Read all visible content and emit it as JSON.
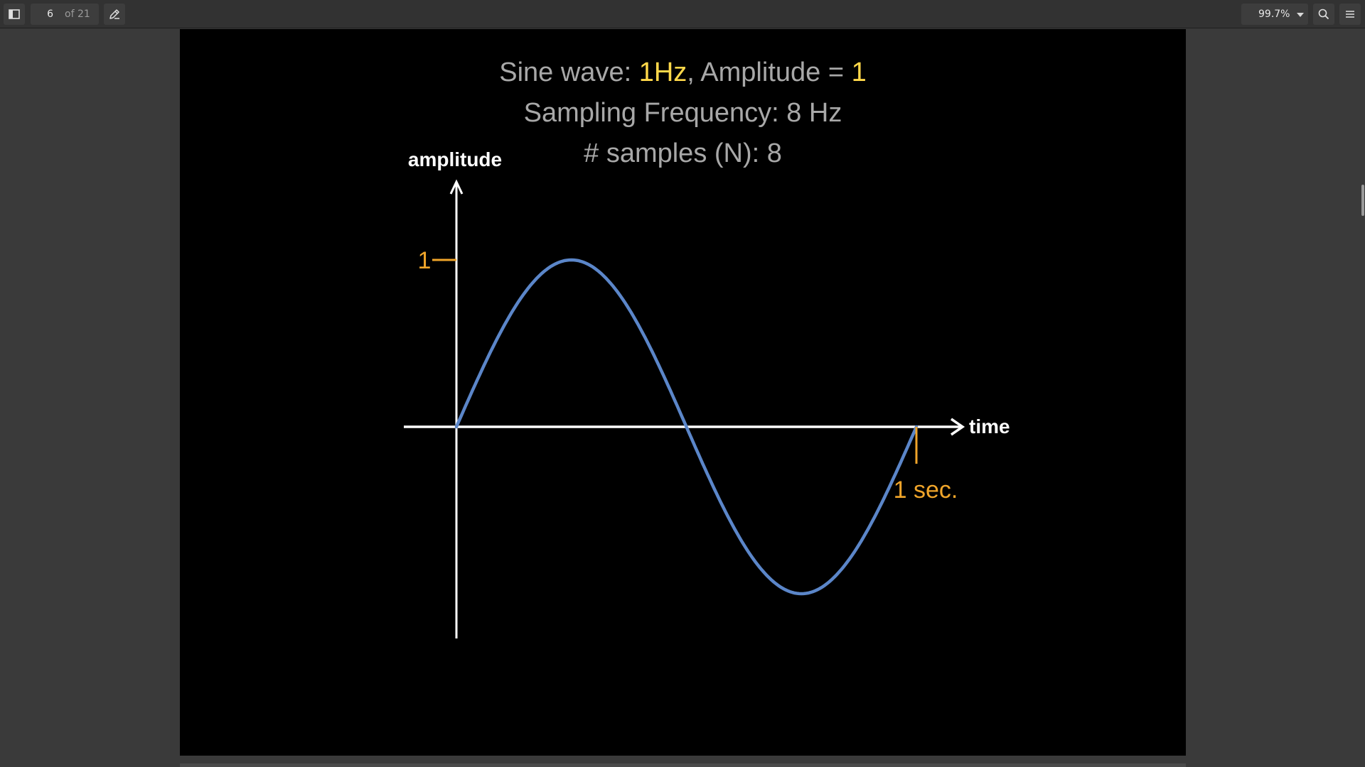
{
  "viewer": {
    "current_page": "6",
    "page_total": "of 21",
    "zoom": "99.7%"
  },
  "icons": {
    "sidebar_toggle": "sidebar-toggle-icon",
    "annotate": "pen-icon",
    "zoom_dropdown": "chevron-down-icon",
    "search": "search-icon",
    "menu": "menu-icon"
  },
  "slide": {
    "line1_prefix": "Sine wave: ",
    "line1_freq": "1Hz",
    "line1_middle": ", Amplitude = ",
    "line1_amp": "1",
    "line2": "Sampling Frequency: 8 Hz",
    "line3": "# samples (N): 8"
  },
  "colors": {
    "highlight": "#ffd84a",
    "wave": "#5b86c9",
    "axis": "#ffffff",
    "marker": "#f0a52a"
  },
  "chart_data": {
    "type": "line",
    "ylabel": "amplitude",
    "xlabel": "time",
    "y_tick_label": "1",
    "x_tick_label": "1 sec.",
    "frequency_hz": 1,
    "amplitude": 1,
    "xlim": [
      0,
      1
    ],
    "ylim": [
      -1,
      1
    ],
    "series": [
      {
        "x": [
          0,
          0.125,
          0.25,
          0.375,
          0.5,
          0.625,
          0.75,
          0.875,
          1
        ],
        "values": [
          0,
          0.707,
          1,
          0.707,
          0,
          -0.707,
          -1,
          -0.707,
          0
        ]
      }
    ]
  }
}
